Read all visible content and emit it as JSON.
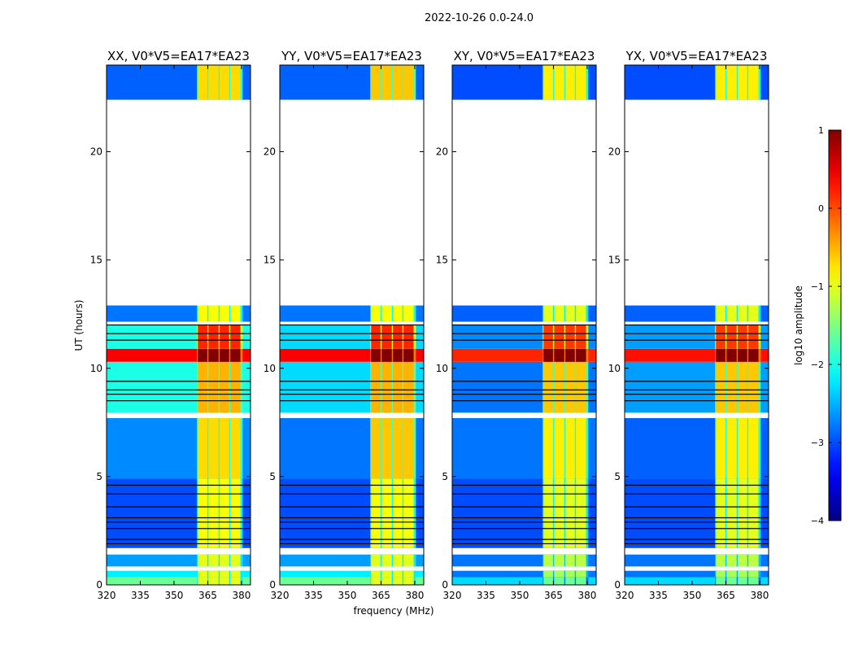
{
  "chart_data": {
    "type": "heatmap",
    "suptitle": "2022-10-26 0.0-24.0",
    "xlabel": "frequency (MHz)",
    "ylabel": "UT (hours)",
    "xlim": [
      320,
      384
    ],
    "ylim": [
      0,
      24
    ],
    "xticks": [
      "320",
      "335",
      "350",
      "365",
      "380"
    ],
    "xtick_values": [
      320,
      335,
      350,
      365,
      380
    ],
    "yticks": [
      "0",
      "5",
      "10",
      "15",
      "20"
    ],
    "ytick_values": [
      0,
      5,
      10,
      15,
      20
    ],
    "panels": [
      {
        "title": "XX, V0*V5=EA17*EA23"
      },
      {
        "title": "YY, V0*V5=EA17*EA23"
      },
      {
        "title": "XY, V0*V5=EA17*EA23"
      },
      {
        "title": "YX, V0*V5=EA17*EA23"
      }
    ],
    "subbands_mhz": [
      [
        360.6,
        364.8
      ],
      [
        365.3,
        369.8
      ],
      [
        370.3,
        374.5
      ],
      [
        375.0,
        379.5
      ]
    ],
    "segments": [
      {
        "t": [
          0.0,
          0.35
        ],
        "bg": [
          -1.6,
          -1.6,
          -2.3,
          -2.3
        ],
        "hi": [
          -1.0,
          -1.0,
          -1.6,
          -1.6
        ]
      },
      {
        "t": [
          0.35,
          0.65
        ],
        "bg": [
          -2.2,
          -2.2,
          -2.8,
          -2.8
        ],
        "hi": [
          -1.0,
          -1.0,
          -1.3,
          -1.3
        ]
      },
      {
        "t": [
          0.85,
          1.4
        ],
        "bg": [
          -2.6,
          -2.6,
          -2.8,
          -2.8
        ],
        "hi": [
          -1.0,
          -1.0,
          -1.2,
          -1.2
        ]
      },
      {
        "t": [
          1.7,
          4.9
        ],
        "bg": [
          -3.0,
          -3.0,
          -3.0,
          -3.0
        ],
        "hi": [
          -0.9,
          -0.9,
          -1.0,
          -1.0
        ]
      },
      {
        "t": [
          4.9,
          7.7
        ],
        "bg": [
          -2.7,
          -2.8,
          -2.8,
          -2.9
        ],
        "hi": [
          -0.7,
          -0.6,
          -0.8,
          -0.8
        ]
      },
      {
        "t": [
          7.95,
          10.3
        ],
        "bg": [
          -2.0,
          -2.3,
          -2.8,
          -2.6
        ],
        "hi": [
          -0.5,
          -0.5,
          -0.6,
          -0.6
        ]
      },
      {
        "t": [
          10.3,
          10.9
        ],
        "bg": [
          0.4,
          0.4,
          0.2,
          0.3
        ],
        "hi": [
          1.0,
          1.0,
          1.0,
          1.0
        ]
      },
      {
        "t": [
          10.9,
          12.0
        ],
        "bg": [
          -2.0,
          -2.3,
          -2.7,
          -2.6
        ],
        "hi": [
          0.2,
          0.2,
          0.1,
          0.1
        ]
      },
      {
        "t": [
          12.15,
          12.9
        ],
        "bg": [
          -2.8,
          -2.8,
          -2.9,
          -2.9
        ],
        "hi": [
          -0.9,
          -0.9,
          -1.0,
          -1.0
        ]
      },
      {
        "t": [
          22.4,
          24.0
        ],
        "bg": [
          -2.9,
          -2.9,
          -3.0,
          -3.0
        ],
        "hi": [
          -0.7,
          -0.6,
          -0.8,
          -0.8
        ]
      }
    ],
    "flagged_times": [
      1.9,
      2.1,
      2.6,
      2.9,
      3.1,
      3.6,
      4.2,
      4.6,
      8.5,
      8.8,
      9.0,
      9.4,
      11.3,
      11.6,
      12.0
    ],
    "colorbar": {
      "label": "log10 amplitude",
      "range": [
        -4,
        1
      ],
      "ticks": [
        "1",
        "0",
        "−1",
        "−2",
        "−3",
        "−4"
      ],
      "tick_values": [
        1,
        0,
        -1,
        -2,
        -3,
        -4
      ],
      "colormap": "jet"
    }
  }
}
